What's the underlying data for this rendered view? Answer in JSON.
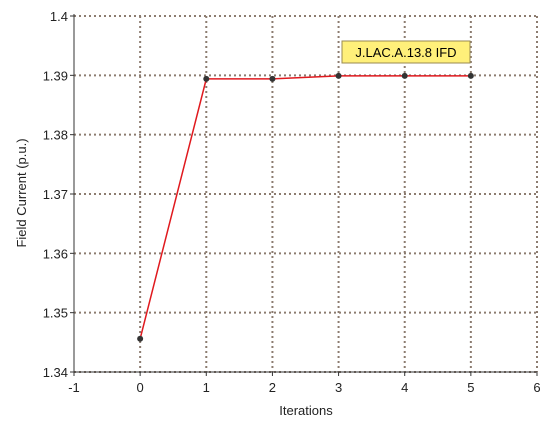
{
  "chart_data": {
    "type": "line",
    "title": "",
    "xlabel": "Iterations",
    "ylabel": "Field Current (p.u.)",
    "xlim": [
      -1,
      6
    ],
    "ylim": [
      1.34,
      1.4
    ],
    "x_ticks": [
      -1,
      0,
      1,
      2,
      3,
      4,
      5,
      6
    ],
    "y_ticks": [
      1.34,
      1.35,
      1.36,
      1.37,
      1.38,
      1.39,
      1.4
    ],
    "x_tick_labels": [
      "-1",
      "0",
      "1",
      "2",
      "3",
      "4",
      "5",
      "6"
    ],
    "y_tick_labels": [
      "1.34",
      "1.35",
      "1.36",
      "1.37",
      "1.38",
      "1.39",
      "1.4"
    ],
    "grid": true,
    "series": [
      {
        "name": "J.LAC.A.13.8 IFD",
        "x": [
          0,
          1,
          2,
          3,
          4,
          5
        ],
        "values": [
          1.3456,
          1.3894,
          1.3894,
          1.3899,
          1.3899,
          1.3899
        ],
        "color": "#e0191e",
        "marker_color": "#333333"
      }
    ],
    "legend_placement": "top-right",
    "legend_background": "#fff07a",
    "grid_color": "#8c7c70"
  }
}
